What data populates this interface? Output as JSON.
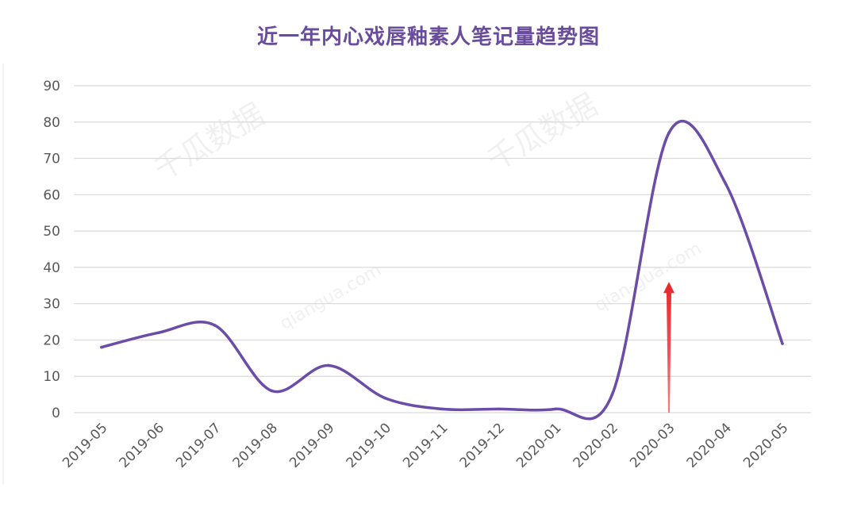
{
  "chart_data": {
    "type": "line",
    "title": "近一年内心戏唇釉素人笔记量趋势图",
    "xlabel": "",
    "ylabel": "",
    "categories": [
      "2019-05",
      "2019-06",
      "2019-07",
      "2019-08",
      "2019-09",
      "2019-10",
      "2019-11",
      "2019-12",
      "2020-01",
      "2020-02",
      "2020-03",
      "2020-04",
      "2020-05"
    ],
    "series": [
      {
        "values": [
          18,
          22,
          24,
          6,
          13,
          4,
          1,
          1,
          1,
          5,
          77,
          63,
          19
        ]
      }
    ],
    "ylim": [
      0,
      90
    ],
    "yticks": [
      0,
      10,
      20,
      30,
      40,
      50,
      60,
      70,
      80,
      90
    ],
    "grid": true,
    "legend": "none",
    "line_color": "#6b4ca8",
    "annotation": {
      "type": "arrow",
      "category": "2020-03",
      "from_value": 0,
      "to_value": 36,
      "color": "#e8252a"
    }
  },
  "watermarks": [
    "千瓜数据",
    "千瓜数据",
    "qiangua.com",
    "qian-gua.com"
  ],
  "colors": {
    "title": "#6a4c9c",
    "grid": "#d9d9d9",
    "axis_text": "#595959"
  }
}
